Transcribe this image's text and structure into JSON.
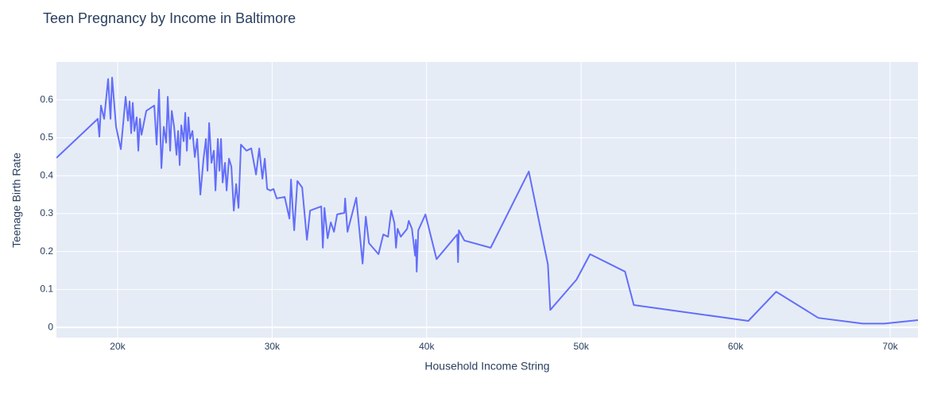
{
  "chart_data": {
    "type": "line",
    "title": "Teen Pregnancy by Income in Baltimore",
    "x_label": "Household Income String",
    "y_label": "Teenage Birth Rate",
    "color": "#636efa",
    "grid": true,
    "xlim": [
      16040,
      71800
    ],
    "ylim": [
      -0.027,
      0.7
    ],
    "xticks": [
      {
        "value": 20000,
        "label": "20k"
      },
      {
        "value": 30000,
        "label": "30k"
      },
      {
        "value": 40000,
        "label": "40k"
      },
      {
        "value": 50000,
        "label": "50k"
      },
      {
        "value": 60000,
        "label": "60k"
      },
      {
        "value": 70000,
        "label": "70k"
      }
    ],
    "yticks": [
      0,
      0.1,
      0.2,
      0.3,
      0.4,
      0.5,
      0.6
    ],
    "x": [
      16040,
      18716,
      18819,
      18922,
      19128,
      19386,
      19540,
      19643,
      19900,
      20209,
      20518,
      20672,
      20775,
      20878,
      20981,
      21084,
      21238,
      21341,
      21444,
      21547,
      21650,
      21856,
      22371,
      22525,
      22680,
      22834,
      22988,
      23143,
      23246,
      23400,
      23503,
      23657,
      23812,
      23915,
      24018,
      24121,
      24275,
      24378,
      24481,
      24584,
      24687,
      24842,
      24996,
      25150,
      25356,
      25562,
      25716,
      25819,
      25922,
      26076,
      26231,
      26334,
      26488,
      26591,
      26694,
      26797,
      26951,
      27054,
      27209,
      27363,
      27518,
      27672,
      27826,
      27981,
      28341,
      28650,
      28959,
      29165,
      29371,
      29525,
      29679,
      29885,
      30091,
      30297,
      30812,
      31120,
      31223,
      31326,
      31429,
      31635,
      31944,
      32253,
      32459,
      33180,
      33283,
      33386,
      33592,
      33798,
      34003,
      34209,
      34672,
      34724,
      34878,
      35445,
      35856,
      36062,
      36268,
      36885,
      37194,
      37503,
      37709,
      37915,
      38018,
      38121,
      38327,
      38739,
      38842,
      39048,
      39253,
      39305,
      39356,
      39459,
      39922,
      40643,
      41981,
      42033,
      42084,
      42444,
      44143,
      46613,
      47848,
      48003,
      49702,
      50577,
      52842,
      53408,
      60820,
      62621,
      65349,
      68231,
      69621,
      71800
    ],
    "values": [
      0.447,
      0.55,
      0.503,
      0.585,
      0.55,
      0.655,
      0.55,
      0.659,
      0.529,
      0.47,
      0.608,
      0.545,
      0.596,
      0.512,
      0.592,
      0.518,
      0.554,
      0.466,
      0.55,
      0.508,
      0.529,
      0.571,
      0.585,
      0.482,
      0.627,
      0.42,
      0.529,
      0.487,
      0.608,
      0.466,
      0.571,
      0.529,
      0.455,
      0.518,
      0.428,
      0.533,
      0.491,
      0.566,
      0.466,
      0.554,
      0.497,
      0.518,
      0.449,
      0.497,
      0.35,
      0.445,
      0.497,
      0.413,
      0.539,
      0.434,
      0.466,
      0.361,
      0.497,
      0.413,
      0.497,
      0.382,
      0.434,
      0.361,
      0.445,
      0.424,
      0.308,
      0.378,
      0.315,
      0.482,
      0.466,
      0.472,
      0.403,
      0.472,
      0.392,
      0.445,
      0.365,
      0.361,
      0.365,
      0.34,
      0.344,
      0.287,
      0.39,
      0.315,
      0.256,
      0.386,
      0.369,
      0.231,
      0.308,
      0.319,
      0.21,
      0.315,
      0.235,
      0.277,
      0.252,
      0.298,
      0.302,
      0.34,
      0.252,
      0.342,
      0.168,
      0.292,
      0.222,
      0.193,
      0.245,
      0.239,
      0.308,
      0.275,
      0.21,
      0.26,
      0.239,
      0.26,
      0.281,
      0.26,
      0.189,
      0.231,
      0.147,
      0.256,
      0.298,
      0.18,
      0.245,
      0.172,
      0.256,
      0.229,
      0.21,
      0.411,
      0.166,
      0.046,
      0.126,
      0.193,
      0.147,
      0.059,
      0.017,
      0.094,
      0.025,
      0.01,
      0.01,
      0.019
    ]
  }
}
